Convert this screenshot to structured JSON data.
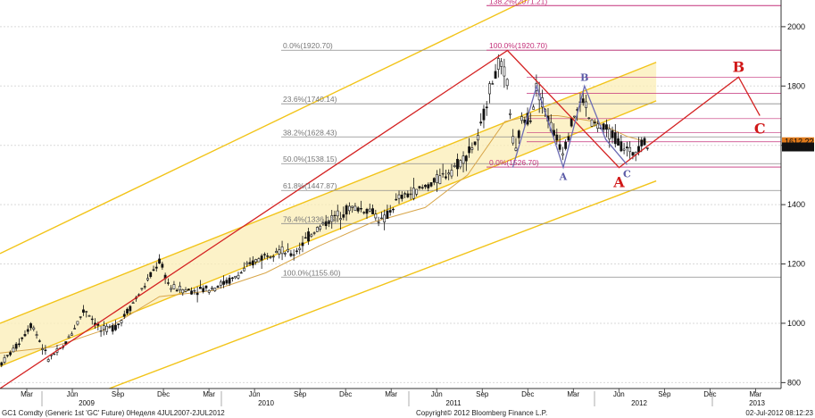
{
  "chart_data": {
    "type": "line",
    "subtype": "weekly candlestick with technical overlays",
    "instrument": "GC1 Comdty (Generic 1st 'GC' Future) 0Неделя 4JUL2007-2JUL2012",
    "copyright": "Copyright© 2012 Bloomberg Finance L.P.",
    "timestamp": "02-Jul-2012 08:12:23",
    "y_axis": {
      "position": "right",
      "ticks": [
        "800",
        "1000",
        "1200",
        "1400",
        "1600",
        "1800",
        "2000"
      ],
      "ylim": [
        780,
        2090
      ]
    },
    "x_axis": {
      "month_labels": [
        "Mar",
        "Jun",
        "Sep",
        "Dec",
        "Mar",
        "Jun",
        "Sep",
        "Dec",
        "Mar",
        "Jun",
        "Sep",
        "Dec",
        "Mar",
        "Jun",
        "Sep",
        "Dec",
        "Mar"
      ],
      "year_labels": [
        "2009",
        "2010",
        "2011",
        "2012",
        "2013"
      ]
    },
    "last_price": {
      "label": "1594.60",
      "value": 1594.6,
      "prev_label": "1612.??"
    },
    "price_path": [
      {
        "t": 0,
        "v": 860
      },
      {
        "t": 3,
        "v": 920
      },
      {
        "t": 6,
        "v": 1000
      },
      {
        "t": 9,
        "v": 880
      },
      {
        "t": 12,
        "v": 920
      },
      {
        "t": 16,
        "v": 1050
      },
      {
        "t": 19,
        "v": 975
      },
      {
        "t": 22,
        "v": 990
      },
      {
        "t": 27,
        "v": 1120
      },
      {
        "t": 30,
        "v": 1210
      },
      {
        "t": 32,
        "v": 1120
      },
      {
        "t": 36,
        "v": 1110
      },
      {
        "t": 40,
        "v": 1120
      },
      {
        "t": 44,
        "v": 1150
      },
      {
        "t": 48,
        "v": 1210
      },
      {
        "t": 52,
        "v": 1250
      },
      {
        "t": 55,
        "v": 1230
      },
      {
        "t": 59,
        "v": 1310
      },
      {
        "t": 63,
        "v": 1360
      },
      {
        "t": 66,
        "v": 1390
      },
      {
        "t": 70,
        "v": 1380
      },
      {
        "t": 72,
        "v": 1340
      },
      {
        "t": 75,
        "v": 1420
      },
      {
        "t": 79,
        "v": 1450
      },
      {
        "t": 83,
        "v": 1490
      },
      {
        "t": 87,
        "v": 1550
      },
      {
        "t": 90,
        "v": 1620
      },
      {
        "t": 92,
        "v": 1780
      },
      {
        "t": 94,
        "v": 1880
      },
      {
        "t": 95.5,
        "v": 1810
      },
      {
        "t": 96.5,
        "v": 1620
      },
      {
        "t": 97,
        "v": 1560
      },
      {
        "t": 98,
        "v": 1680
      },
      {
        "t": 100,
        "v": 1700
      },
      {
        "t": 101,
        "v": 1800
      },
      {
        "t": 102,
        "v": 1750
      },
      {
        "t": 104,
        "v": 1650
      },
      {
        "t": 106,
        "v": 1580
      },
      {
        "t": 108,
        "v": 1700
      },
      {
        "t": 110,
        "v": 1760
      },
      {
        "t": 111,
        "v": 1680
      },
      {
        "t": 113,
        "v": 1660
      },
      {
        "t": 115,
        "v": 1640
      },
      {
        "t": 117,
        "v": 1600
      },
      {
        "t": 119,
        "v": 1570
      },
      {
        "t": 121,
        "v": 1620
      },
      {
        "t": 122,
        "v": 1590
      }
    ],
    "moving_average": [
      {
        "t": 0,
        "v": 900
      },
      {
        "t": 10,
        "v": 920
      },
      {
        "t": 20,
        "v": 980
      },
      {
        "t": 30,
        "v": 1090
      },
      {
        "t": 40,
        "v": 1110
      },
      {
        "t": 50,
        "v": 1170
      },
      {
        "t": 60,
        "v": 1260
      },
      {
        "t": 70,
        "v": 1340
      },
      {
        "t": 80,
        "v": 1390
      },
      {
        "t": 88,
        "v": 1500
      },
      {
        "t": 95,
        "v": 1680
      },
      {
        "t": 100,
        "v": 1700
      },
      {
        "t": 105,
        "v": 1700
      },
      {
        "t": 112,
        "v": 1680
      },
      {
        "t": 118,
        "v": 1630
      },
      {
        "t": 122,
        "v": 1610
      }
    ],
    "fib_left": [
      {
        "label": "0.0%(1920.70)",
        "value": 1920.7
      },
      {
        "label": "23.6%(1740.14)",
        "value": 1740.14
      },
      {
        "label": "38.2%(1628.43)",
        "value": 1628.43
      },
      {
        "label": "50.0%(1538.15)",
        "value": 1538.15
      },
      {
        "label": "61.8%(1447.87)",
        "value": 1447.87
      },
      {
        "label": "76.4%(1336.16)",
        "value": 1336.16
      },
      {
        "label": "100.0%(1155.60)",
        "value": 1155.6
      }
    ],
    "fib_right": [
      {
        "label": "138.2%(2071.21)",
        "value": 2071.21
      },
      {
        "label": "100.0%(1920.70)",
        "value": 1920.7
      },
      {
        "label": "0.0%(1526.70)",
        "value": 1526.7
      }
    ],
    "fib_extra_levels": [
      1830,
      1775,
      1690,
      1643,
      1612
    ],
    "channel_lines": [
      {
        "name": "upper outer",
        "from": {
          "t": 0,
          "v": 1235
        },
        "to": {
          "t": 123.5,
          "v": 2300
        }
      },
      {
        "name": "upper",
        "from": {
          "t": 0,
          "v": 1000
        },
        "to": {
          "t": 123.5,
          "v": 1880
        }
      },
      {
        "name": "lower",
        "from": {
          "t": 0,
          "v": 855
        },
        "to": {
          "t": 123.5,
          "v": 1750
        }
      },
      {
        "name": "lower outer",
        "from": {
          "t": 0,
          "v": 640
        },
        "to": {
          "t": 123.5,
          "v": 1480
        }
      }
    ],
    "harmonic_points": [
      {
        "label": "A",
        "t": 106,
        "v": 1526
      },
      {
        "label": "B",
        "t": 110,
        "v": 1800
      },
      {
        "label": "C",
        "t": 118,
        "v": 1535
      }
    ],
    "harmonic_path": [
      {
        "t": 96.5,
        "v": 1525
      },
      {
        "t": 101,
        "v": 1800
      },
      {
        "t": 106,
        "v": 1526
      },
      {
        "t": 110,
        "v": 1800
      },
      {
        "t": 114,
        "v": 1620
      },
      {
        "t": 118,
        "v": 1535
      }
    ],
    "wave_labels": [
      {
        "label": "A",
        "t": 116.5,
        "v": 1525
      },
      {
        "label": "B",
        "t": 139,
        "v": 1830
      },
      {
        "label": "C",
        "t": 143,
        "v": 1700
      }
    ],
    "wave_path": [
      {
        "t": 0,
        "v": 780
      },
      {
        "t": 95.5,
        "v": 1920
      },
      {
        "t": 116.5,
        "v": 1525
      },
      {
        "t": 139,
        "v": 1830
      },
      {
        "t": 143,
        "v": 1700
      }
    ]
  }
}
